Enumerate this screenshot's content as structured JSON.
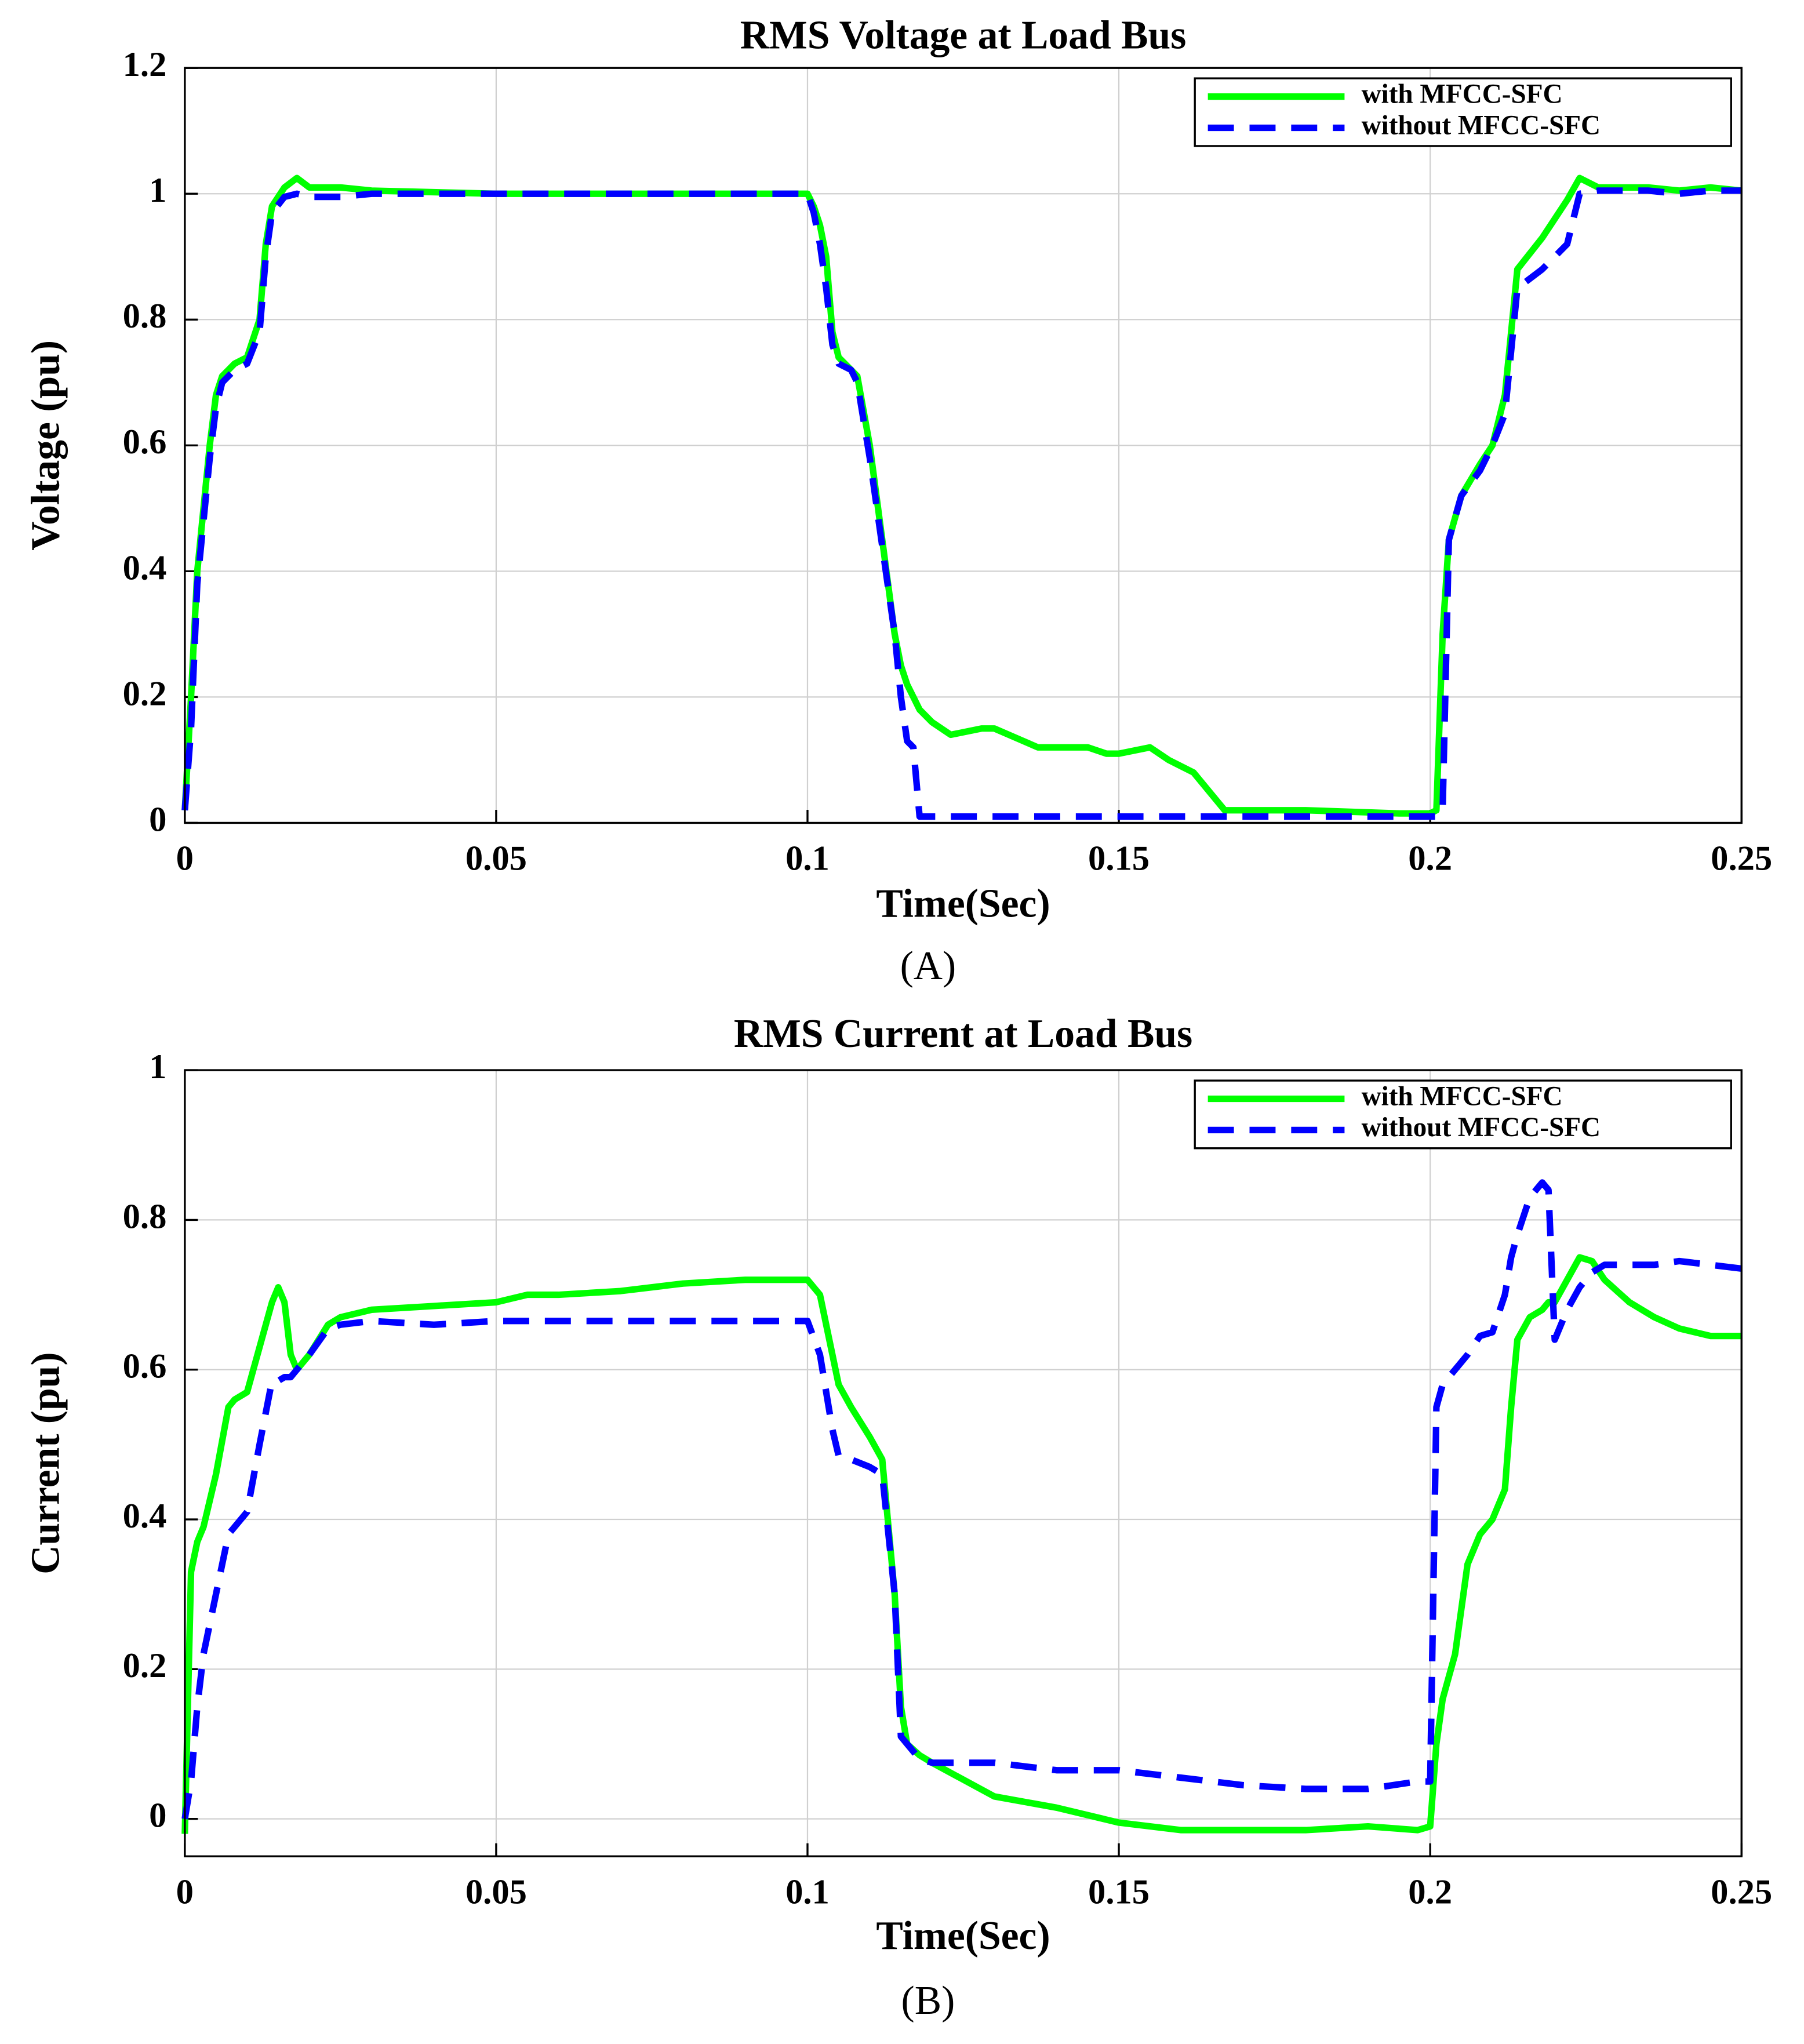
{
  "chart_data": [
    {
      "type": "line",
      "title": "RMS Voltage at Load Bus",
      "xlabel": "Time(Sec)",
      "ylabel": "Voltage (pu)",
      "caption": "(A)",
      "x": [
        0,
        0.001,
        0.002,
        0.004,
        0.005,
        0.006,
        0.008,
        0.01,
        0.012,
        0.013,
        0.014,
        0.016,
        0.018,
        0.02,
        0.025,
        0.03,
        0.05,
        0.08,
        0.1,
        0.101,
        0.102,
        0.103,
        0.104,
        0.105,
        0.107,
        0.108,
        0.11,
        0.112,
        0.114,
        0.115,
        0.116,
        0.117,
        0.118,
        0.12,
        0.123,
        0.128,
        0.13,
        0.137,
        0.14,
        0.145,
        0.148,
        0.15,
        0.155,
        0.158,
        0.162,
        0.167,
        0.18,
        0.195,
        0.2,
        0.201,
        0.202,
        0.203,
        0.205,
        0.208,
        0.21,
        0.212,
        0.214,
        0.218,
        0.222,
        0.224,
        0.227,
        0.235,
        0.24,
        0.245,
        0.25
      ],
      "series": [
        {
          "name": "with MFCC-SFC",
          "color": "#00ff00",
          "linestyle": "solid",
          "values": [
            0.02,
            0.2,
            0.4,
            0.6,
            0.68,
            0.71,
            0.73,
            0.74,
            0.8,
            0.92,
            0.98,
            1.01,
            1.025,
            1.01,
            1.01,
            1.005,
            1.0,
            1.0,
            1.0,
            0.98,
            0.95,
            0.9,
            0.78,
            0.74,
            0.72,
            0.71,
            0.6,
            0.45,
            0.3,
            0.25,
            0.22,
            0.2,
            0.18,
            0.16,
            0.14,
            0.15,
            0.15,
            0.12,
            0.12,
            0.12,
            0.11,
            0.11,
            0.12,
            0.1,
            0.08,
            0.02,
            0.02,
            0.015,
            0.015,
            0.02,
            0.3,
            0.45,
            0.52,
            0.57,
            0.6,
            0.68,
            0.88,
            0.93,
            0.99,
            1.025,
            1.01,
            1.01,
            1.005,
            1.01,
            1.005
          ]
        },
        {
          "name": "without MFCC-SFC",
          "color": "#0000ff",
          "linestyle": "dashed",
          "values": [
            0.02,
            0.15,
            0.38,
            0.58,
            0.66,
            0.7,
            0.72,
            0.73,
            0.78,
            0.9,
            0.97,
            0.995,
            1.0,
            0.995,
            0.995,
            1.0,
            1.0,
            1.0,
            1.0,
            0.97,
            0.92,
            0.85,
            0.76,
            0.73,
            0.72,
            0.7,
            0.58,
            0.44,
            0.3,
            0.2,
            0.13,
            0.12,
            0.01,
            0.01,
            0.01,
            0.01,
            0.01,
            0.01,
            0.01,
            0.01,
            0.01,
            0.01,
            0.01,
            0.01,
            0.01,
            0.01,
            0.01,
            0.01,
            0.01,
            0.01,
            0.02,
            0.45,
            0.52,
            0.56,
            0.6,
            0.65,
            0.85,
            0.88,
            0.92,
            1.0,
            1.005,
            1.005,
            1.0,
            1.005,
            1.005
          ]
        }
      ],
      "xlim": [
        0,
        0.25
      ],
      "xticks": [
        0,
        0.05,
        0.1,
        0.15,
        0.2,
        0.25
      ],
      "ylim": [
        0,
        1.2
      ],
      "yticks": [
        0,
        0.2,
        0.4,
        0.6,
        0.8,
        1,
        1.2
      ],
      "grid": true,
      "legend": "upper right"
    },
    {
      "type": "line",
      "title": "RMS Current at Load Bus",
      "xlabel": "Time(Sec)",
      "ylabel": "Current (pu)",
      "caption": "(B)",
      "x": [
        0,
        0.001,
        0.002,
        0.003,
        0.005,
        0.007,
        0.008,
        0.01,
        0.012,
        0.014,
        0.015,
        0.016,
        0.017,
        0.018,
        0.02,
        0.023,
        0.025,
        0.03,
        0.04,
        0.05,
        0.055,
        0.06,
        0.07,
        0.08,
        0.09,
        0.1,
        0.102,
        0.104,
        0.105,
        0.107,
        0.11,
        0.112,
        0.114,
        0.115,
        0.116,
        0.118,
        0.12,
        0.13,
        0.14,
        0.15,
        0.16,
        0.17,
        0.18,
        0.19,
        0.198,
        0.2,
        0.201,
        0.202,
        0.204,
        0.206,
        0.208,
        0.21,
        0.212,
        0.213,
        0.214,
        0.216,
        0.218,
        0.219,
        0.22,
        0.222,
        0.224,
        0.226,
        0.228,
        0.232,
        0.236,
        0.24,
        0.245,
        0.25
      ],
      "series": [
        {
          "name": "with MFCC-SFC",
          "color": "#00ff00",
          "linestyle": "solid",
          "values": [
            -0.02,
            0.33,
            0.37,
            0.39,
            0.46,
            0.55,
            0.56,
            0.57,
            0.63,
            0.69,
            0.71,
            0.69,
            0.62,
            0.6,
            0.62,
            0.66,
            0.67,
            0.68,
            0.685,
            0.69,
            0.7,
            0.7,
            0.705,
            0.715,
            0.72,
            0.72,
            0.7,
            0.62,
            0.58,
            0.55,
            0.51,
            0.48,
            0.3,
            0.15,
            0.1,
            0.085,
            0.075,
            0.03,
            0.015,
            -0.005,
            -0.015,
            -0.015,
            -0.015,
            -0.01,
            -0.015,
            -0.01,
            0.1,
            0.16,
            0.22,
            0.34,
            0.38,
            0.4,
            0.44,
            0.55,
            0.64,
            0.67,
            0.68,
            0.69,
            0.69,
            0.72,
            0.75,
            0.745,
            0.72,
            0.69,
            0.67,
            0.655,
            0.645,
            0.645
          ]
        },
        {
          "name": "without MFCC-SFC",
          "color": "#0000ff",
          "linestyle": "dashed",
          "values": [
            0,
            0.05,
            0.15,
            0.22,
            0.3,
            0.38,
            0.39,
            0.41,
            0.5,
            0.585,
            0.585,
            0.59,
            0.59,
            0.6,
            0.62,
            0.655,
            0.66,
            0.665,
            0.66,
            0.665,
            0.665,
            0.665,
            0.665,
            0.665,
            0.665,
            0.665,
            0.62,
            0.52,
            0.485,
            0.48,
            0.47,
            0.46,
            0.3,
            0.11,
            0.1,
            0.08,
            0.075,
            0.075,
            0.065,
            0.065,
            0.055,
            0.045,
            0.04,
            0.04,
            0.05,
            0.05,
            0.55,
            0.58,
            0.6,
            0.62,
            0.645,
            0.65,
            0.7,
            0.75,
            0.78,
            0.83,
            0.85,
            0.84,
            0.64,
            0.68,
            0.71,
            0.73,
            0.74,
            0.74,
            0.74,
            0.745,
            0.74,
            0.735
          ]
        }
      ],
      "xlim": [
        0,
        0.25
      ],
      "xticks": [
        0,
        0.05,
        0.1,
        0.15,
        0.2,
        0.25
      ],
      "ylim": [
        -0.05,
        1
      ],
      "yticks": [
        0,
        0.2,
        0.4,
        0.6,
        0.8,
        1
      ],
      "grid": true,
      "legend": "upper right"
    }
  ]
}
